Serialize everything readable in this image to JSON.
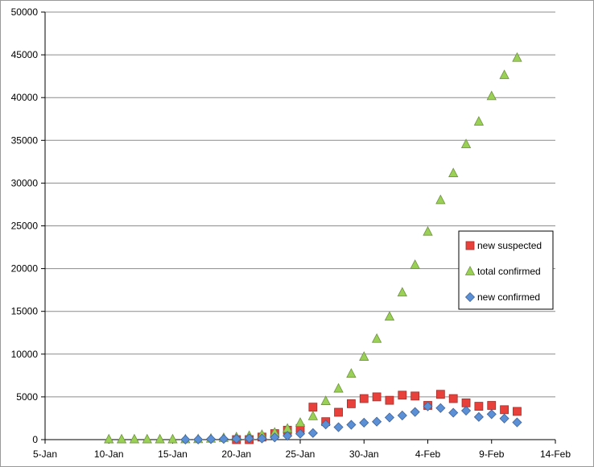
{
  "chart_data": {
    "type": "scatter",
    "title": "",
    "xlabel": "",
    "ylabel": "",
    "x_tick_labels": [
      "5-Jan",
      "10-Jan",
      "15-Jan",
      "20-Jan",
      "25-Jan",
      "30-Jan",
      "4-Feb",
      "9-Feb",
      "14-Feb"
    ],
    "xlim": [
      "5-Jan",
      "14-Feb"
    ],
    "ylim": [
      0,
      50000
    ],
    "y_tick_labels": [
      "0",
      "5000",
      "10000",
      "15000",
      "20000",
      "25000",
      "30000",
      "35000",
      "40000",
      "45000",
      "50000"
    ],
    "grid": "horizontal",
    "legend_position": "right",
    "series": [
      {
        "name": "new suspected",
        "marker": "square",
        "color": "#e8413c",
        "points": [
          {
            "x": "20-Jan",
            "y": 0
          },
          {
            "x": "21-Jan",
            "y": 0
          },
          {
            "x": "22-Jan",
            "y": 300
          },
          {
            "x": "23-Jan",
            "y": 700
          },
          {
            "x": "24-Jan",
            "y": 1100
          },
          {
            "x": "25-Jan",
            "y": 1300
          },
          {
            "x": "26-Jan",
            "y": 3800
          },
          {
            "x": "27-Jan",
            "y": 2100
          },
          {
            "x": "28-Jan",
            "y": 3200
          },
          {
            "x": "29-Jan",
            "y": 4200
          },
          {
            "x": "30-Jan",
            "y": 4800
          },
          {
            "x": "31-Jan",
            "y": 5000
          },
          {
            "x": "1-Feb",
            "y": 4600
          },
          {
            "x": "2-Feb",
            "y": 5200
          },
          {
            "x": "3-Feb",
            "y": 5100
          },
          {
            "x": "4-Feb",
            "y": 4000
          },
          {
            "x": "5-Feb",
            "y": 5300
          },
          {
            "x": "6-Feb",
            "y": 4800
          },
          {
            "x": "7-Feb",
            "y": 4300
          },
          {
            "x": "8-Feb",
            "y": 3900
          },
          {
            "x": "9-Feb",
            "y": 4000
          },
          {
            "x": "10-Feb",
            "y": 3500
          },
          {
            "x": "11-Feb",
            "y": 3300
          }
        ]
      },
      {
        "name": "total confirmed",
        "marker": "triangle",
        "color": "#9bd057",
        "points": [
          {
            "x": "10-Jan",
            "y": 41
          },
          {
            "x": "11-Jan",
            "y": 41
          },
          {
            "x": "12-Jan",
            "y": 41
          },
          {
            "x": "13-Jan",
            "y": 41
          },
          {
            "x": "14-Jan",
            "y": 41
          },
          {
            "x": "15-Jan",
            "y": 41
          },
          {
            "x": "16-Jan",
            "y": 45
          },
          {
            "x": "17-Jan",
            "y": 62
          },
          {
            "x": "18-Jan",
            "y": 121
          },
          {
            "x": "19-Jan",
            "y": 198
          },
          {
            "x": "20-Jan",
            "y": 291
          },
          {
            "x": "21-Jan",
            "y": 440
          },
          {
            "x": "22-Jan",
            "y": 571
          },
          {
            "x": "23-Jan",
            "y": 830
          },
          {
            "x": "24-Jan",
            "y": 1287
          },
          {
            "x": "25-Jan",
            "y": 1975
          },
          {
            "x": "26-Jan",
            "y": 2744
          },
          {
            "x": "27-Jan",
            "y": 4515
          },
          {
            "x": "28-Jan",
            "y": 5974
          },
          {
            "x": "29-Jan",
            "y": 7711
          },
          {
            "x": "30-Jan",
            "y": 9692
          },
          {
            "x": "31-Jan",
            "y": 11791
          },
          {
            "x": "1-Feb",
            "y": 14380
          },
          {
            "x": "2-Feb",
            "y": 17205
          },
          {
            "x": "3-Feb",
            "y": 20438
          },
          {
            "x": "4-Feb",
            "y": 24324
          },
          {
            "x": "5-Feb",
            "y": 28018
          },
          {
            "x": "6-Feb",
            "y": 31161
          },
          {
            "x": "7-Feb",
            "y": 34546
          },
          {
            "x": "8-Feb",
            "y": 37198
          },
          {
            "x": "9-Feb",
            "y": 40171
          },
          {
            "x": "10-Feb",
            "y": 42638
          },
          {
            "x": "11-Feb",
            "y": 44653
          }
        ]
      },
      {
        "name": "new confirmed",
        "marker": "diamond",
        "color": "#5b8fd6",
        "points": [
          {
            "x": "16-Jan",
            "y": 4
          },
          {
            "x": "17-Jan",
            "y": 17
          },
          {
            "x": "18-Jan",
            "y": 59
          },
          {
            "x": "19-Jan",
            "y": 77
          },
          {
            "x": "20-Jan",
            "y": 93
          },
          {
            "x": "21-Jan",
            "y": 149
          },
          {
            "x": "22-Jan",
            "y": 131
          },
          {
            "x": "23-Jan",
            "y": 259
          },
          {
            "x": "24-Jan",
            "y": 444
          },
          {
            "x": "25-Jan",
            "y": 688
          },
          {
            "x": "26-Jan",
            "y": 769
          },
          {
            "x": "27-Jan",
            "y": 1771
          },
          {
            "x": "28-Jan",
            "y": 1459
          },
          {
            "x": "29-Jan",
            "y": 1737
          },
          {
            "x": "30-Jan",
            "y": 1981
          },
          {
            "x": "31-Jan",
            "y": 2099
          },
          {
            "x": "1-Feb",
            "y": 2589
          },
          {
            "x": "2-Feb",
            "y": 2825
          },
          {
            "x": "3-Feb",
            "y": 3233
          },
          {
            "x": "4-Feb",
            "y": 3886
          },
          {
            "x": "5-Feb",
            "y": 3694
          },
          {
            "x": "6-Feb",
            "y": 3143
          },
          {
            "x": "7-Feb",
            "y": 3385
          },
          {
            "x": "8-Feb",
            "y": 2652
          },
          {
            "x": "9-Feb",
            "y": 2973
          },
          {
            "x": "10-Feb",
            "y": 2467
          },
          {
            "x": "11-Feb",
            "y": 2015
          }
        ]
      }
    ]
  }
}
